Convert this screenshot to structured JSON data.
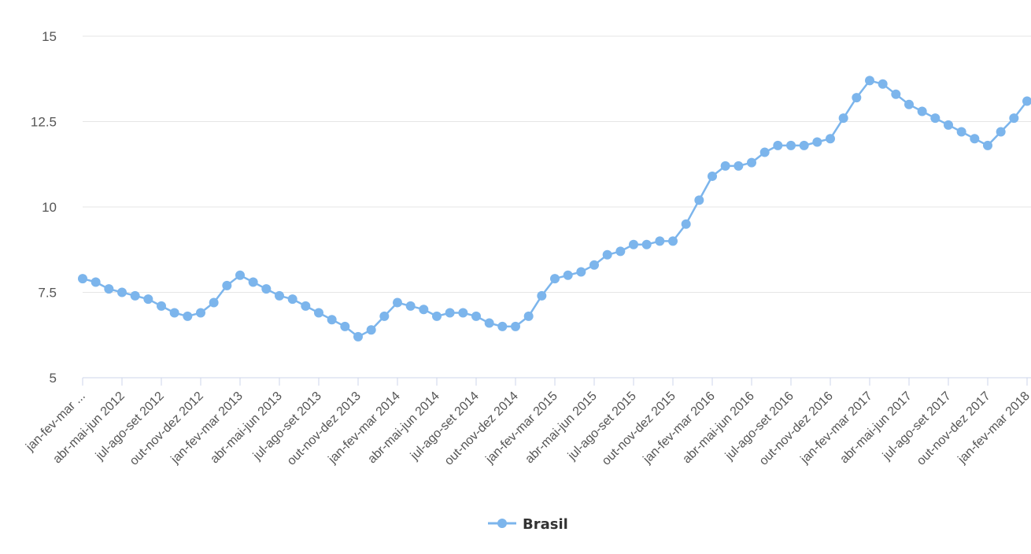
{
  "chart_data": {
    "type": "line",
    "title": "",
    "xlabel": "",
    "ylabel": "",
    "ylim": [
      5,
      15
    ],
    "yticks": [
      5,
      7.5,
      10,
      12.5,
      15
    ],
    "ytick_labels": [
      "5",
      "7.5",
      "10",
      "12.5",
      "15"
    ],
    "grid": "horizontal",
    "legend_position": "bottom-center",
    "colors": {
      "series": "#7cb5ec",
      "grid": "#e6e6e6",
      "axis": "#ccd6eb"
    },
    "x_tick_labels": [
      "jan-fev-mar ...",
      "abr-mai-jun 2012",
      "jul-ago-set 2012",
      "out-nov-dez 2012",
      "jan-fev-mar 2013",
      "abr-mai-jun 2013",
      "jul-ago-set 2013",
      "out-nov-dez 2013",
      "jan-fev-mar 2014",
      "abr-mai-jun 2014",
      "jul-ago-set 2014",
      "out-nov-dez 2014",
      "jan-fev-mar 2015",
      "abr-mai-jun 2015",
      "jul-ago-set 2015",
      "out-nov-dez 2015",
      "jan-fev-mar 2016",
      "abr-mai-jun 2016",
      "jul-ago-set 2016",
      "out-nov-dez 2016",
      "jan-fev-mar 2017",
      "abr-mai-jun 2017",
      "jul-ago-set 2017",
      "out-nov-dez 2017",
      "jan-fev-mar 2018"
    ],
    "series": [
      {
        "name": "Brasil",
        "values": [
          7.9,
          7.8,
          7.6,
          7.5,
          7.4,
          7.3,
          7.1,
          6.9,
          6.8,
          6.9,
          7.2,
          7.7,
          8.0,
          7.8,
          7.6,
          7.4,
          7.3,
          7.1,
          6.9,
          6.7,
          6.5,
          6.2,
          6.4,
          6.8,
          7.2,
          7.1,
          7.0,
          6.8,
          6.9,
          6.9,
          6.8,
          6.6,
          6.5,
          6.5,
          6.8,
          7.4,
          7.9,
          8.0,
          8.1,
          8.3,
          8.6,
          8.7,
          8.9,
          8.9,
          9.0,
          9.0,
          9.5,
          10.2,
          10.9,
          11.2,
          11.2,
          11.3,
          11.6,
          11.8,
          11.8,
          11.8,
          11.9,
          12.0,
          12.6,
          13.2,
          13.7,
          13.6,
          13.3,
          13.0,
          12.8,
          12.6,
          12.4,
          12.2,
          12.0,
          11.8,
          12.2,
          12.6,
          13.1
        ]
      }
    ]
  }
}
